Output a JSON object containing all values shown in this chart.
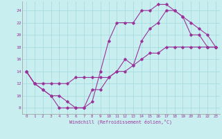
{
  "xlabel": "Windchill (Refroidissement éolien,°C)",
  "bg_color": "#c8eef0",
  "grid_color": "#a8dde0",
  "line_color": "#993399",
  "xlim": [
    -0.5,
    23.5
  ],
  "ylim": [
    7.0,
    25.5
  ],
  "yticks": [
    8,
    10,
    12,
    14,
    16,
    18,
    20,
    22,
    24
  ],
  "xticks": [
    0,
    1,
    2,
    3,
    4,
    5,
    6,
    7,
    8,
    9,
    10,
    11,
    12,
    13,
    14,
    15,
    16,
    17,
    18,
    19,
    20,
    21,
    22,
    23
  ],
  "line1_x": [
    0,
    1,
    2,
    3,
    4,
    5,
    6,
    7,
    8,
    9,
    10,
    11,
    12,
    13,
    14,
    15,
    16,
    17,
    18,
    19,
    20,
    21,
    22,
    23
  ],
  "line1_y": [
    14,
    12,
    11,
    10,
    8,
    8,
    8,
    8,
    9,
    14,
    19,
    22,
    22,
    22,
    24,
    24,
    25,
    25,
    24,
    23,
    20,
    20,
    18,
    18
  ],
  "line2_x": [
    0,
    1,
    2,
    3,
    4,
    5,
    6,
    7,
    8,
    9,
    10,
    11,
    12,
    13,
    14,
    15,
    16,
    17,
    18,
    19,
    20,
    21,
    22,
    23
  ],
  "line2_y": [
    14,
    12,
    11,
    10,
    10,
    9,
    8,
    8,
    11,
    11,
    13,
    14,
    16,
    15,
    19,
    21,
    22,
    24,
    24,
    23,
    22,
    21,
    20,
    18
  ],
  "line3_x": [
    0,
    1,
    2,
    3,
    4,
    5,
    6,
    7,
    8,
    9,
    10,
    11,
    12,
    13,
    14,
    15,
    16,
    17,
    18,
    19,
    20,
    21,
    22,
    23
  ],
  "line3_y": [
    14,
    12,
    12,
    12,
    12,
    12,
    13,
    13,
    13,
    13,
    13,
    14,
    14,
    15,
    16,
    17,
    17,
    18,
    18,
    18,
    18,
    18,
    18,
    18
  ]
}
